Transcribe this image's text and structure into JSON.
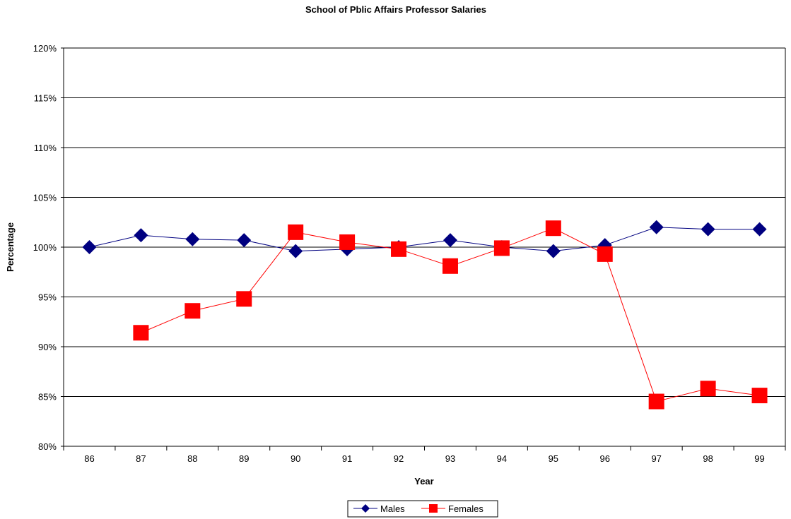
{
  "chart_data": {
    "type": "line",
    "title": "School of Pblic Affairs Professor Salaries",
    "xlabel": "Year",
    "ylabel": "Percentage",
    "categories": [
      "86",
      "87",
      "88",
      "89",
      "90",
      "91",
      "92",
      "93",
      "94",
      "95",
      "96",
      "97",
      "98",
      "99"
    ],
    "ylim": [
      0.8,
      1.2
    ],
    "yticks": [
      0.8,
      0.85,
      0.9,
      0.95,
      1.0,
      1.05,
      1.1,
      1.15,
      1.2
    ],
    "ytick_labels": [
      "80%",
      "85%",
      "90%",
      "95%",
      "100%",
      "105%",
      "110%",
      "115%",
      "120%"
    ],
    "grid": "horizontal",
    "legend_position": "bottom",
    "series": [
      {
        "name": "Males",
        "color": "#000080",
        "marker": "diamond",
        "values": [
          1.0,
          1.012,
          1.008,
          1.007,
          0.996,
          0.998,
          1.0,
          1.007,
          1.0,
          0.996,
          1.002,
          1.02,
          1.018,
          1.018
        ]
      },
      {
        "name": "Females",
        "color": "#FF0000",
        "marker": "square",
        "values": [
          null,
          0.914,
          0.936,
          0.948,
          1.015,
          1.005,
          0.998,
          0.981,
          0.999,
          1.019,
          0.993,
          0.845,
          0.858,
          0.851
        ]
      }
    ]
  }
}
